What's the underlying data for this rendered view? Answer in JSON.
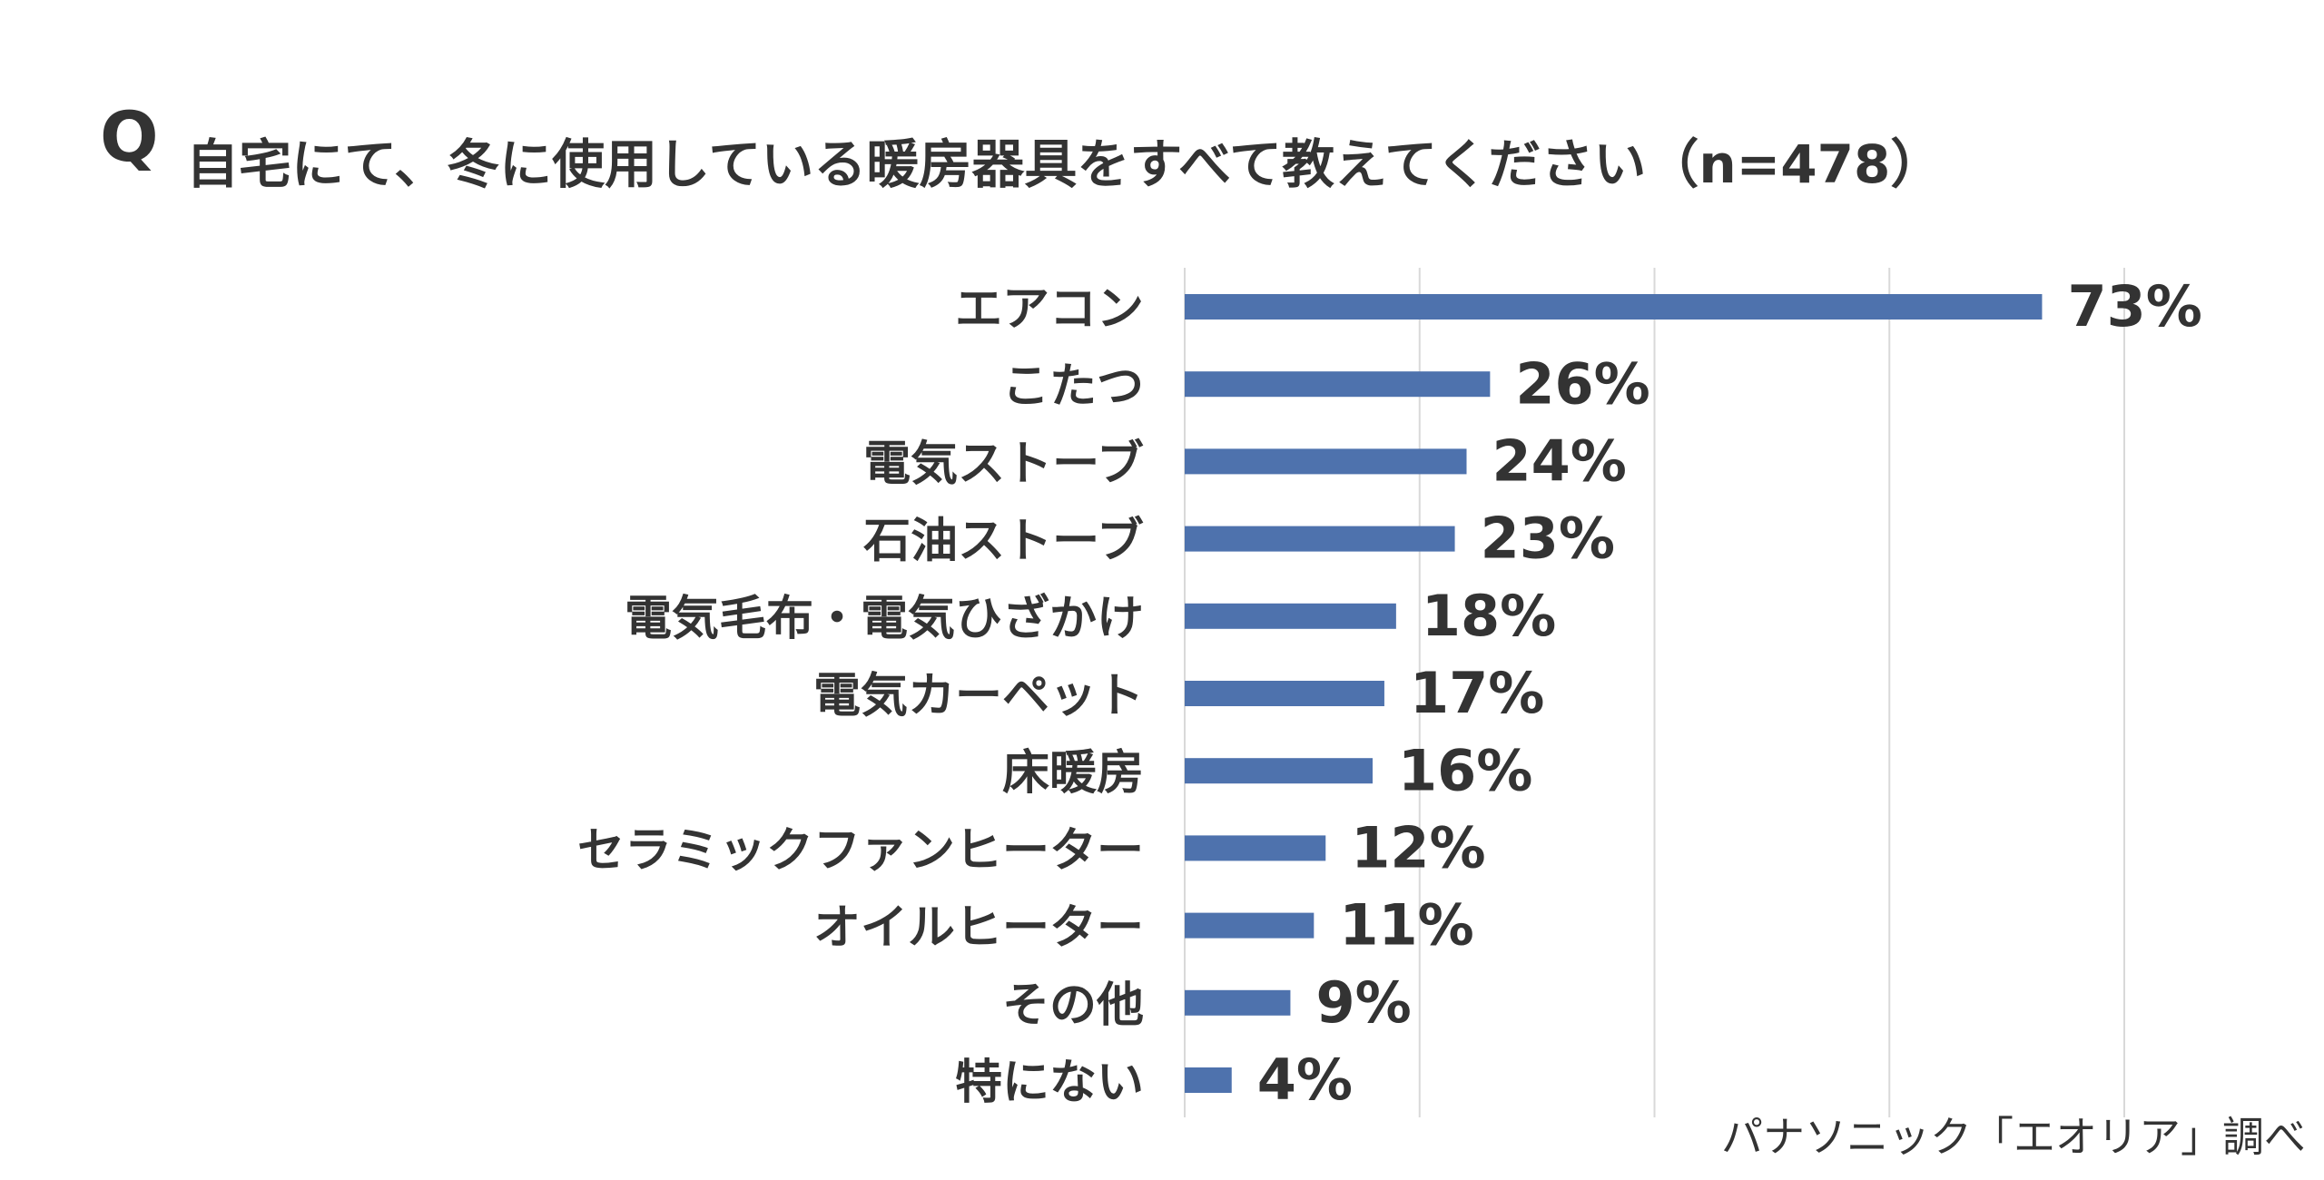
{
  "chart_data": {
    "type": "bar",
    "orientation": "horizontal",
    "question_mark": "Q",
    "title": "自宅にて、冬に使用している暖房器具をすべて教えてください（n=478）",
    "source": "パナソニック「エオリア」調べ",
    "categories": [
      "エアコン",
      "こたつ",
      "電気ストーブ",
      "石油ストーブ",
      "電気毛布・電気ひざかけ",
      "電気カーペット",
      "床暖房",
      "セラミックファンヒーター",
      "オイルヒーター",
      "その他",
      "特にない"
    ],
    "values": [
      73,
      26,
      24,
      23,
      18,
      17,
      16,
      12,
      11,
      9,
      4
    ],
    "value_labels": [
      "73%",
      "26%",
      "24%",
      "23%",
      "18%",
      "17%",
      "16%",
      "12%",
      "11%",
      "9%",
      "4%"
    ],
    "color": "#4e72ad",
    "xlim": [
      0,
      80
    ],
    "xticks": [
      0,
      20,
      40,
      60,
      80
    ],
    "grid": true
  }
}
